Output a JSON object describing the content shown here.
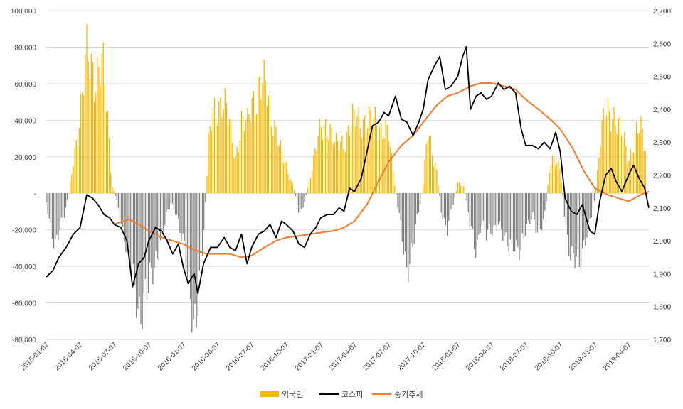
{
  "chart_data": {
    "type": "bar",
    "title": "",
    "left_axis": {
      "min": -80000,
      "max": 100000,
      "step": 20000,
      "ticks": [
        "100,000",
        "80,000",
        "60,000",
        "40,000",
        "20,000",
        "-",
        "-20,000",
        "-40,000",
        "-60,000",
        "-80,000"
      ]
    },
    "right_axis": {
      "min": 1700,
      "max": 2700,
      "step": 100,
      "ticks": [
        "2,700",
        "2,600",
        "2,500",
        "2,400",
        "2,300",
        "2,200",
        "2,100",
        "2,000",
        "1,900",
        "1,800",
        "1,700"
      ]
    },
    "x_ticks": [
      "2015-01-07",
      "2015-04-07",
      "2015-07-07",
      "2015-10-07",
      "2016-01-07",
      "2016-04-07",
      "2016-07-07",
      "2016-10-07",
      "2017-01-07",
      "2017-04-07",
      "2017-07-07",
      "2017-10-07",
      "2018-01-07",
      "2018-04-07",
      "2018-07-07",
      "2018-10-07",
      "2019-01-07",
      "2019-04-07"
    ],
    "x_range": [
      "2015-01-07",
      "2019-05-31"
    ],
    "grid": "horizontal",
    "legend_position": "bottom",
    "colors": {
      "positive": "#F5B800",
      "negative": "#808080",
      "kospi": "#000000",
      "trend": "#ED7D31"
    },
    "series": [
      {
        "name": "외국인",
        "type": "bar",
        "axis": "left",
        "points": [
          [
            "2015-01-07",
            -5000
          ],
          [
            "2015-02-01",
            -30000
          ],
          [
            "2015-02-20",
            -15000
          ],
          [
            "2015-03-10",
            2000
          ],
          [
            "2015-03-25",
            25000
          ],
          [
            "2015-04-07",
            45000
          ],
          [
            "2015-04-25",
            72000
          ],
          [
            "2015-05-15",
            68000
          ],
          [
            "2015-06-05",
            70000
          ],
          [
            "2015-06-20",
            40000
          ],
          [
            "2015-07-01",
            5000
          ],
          [
            "2015-07-15",
            -5000
          ],
          [
            "2015-08-05",
            -25000
          ],
          [
            "2015-08-25",
            -50000
          ],
          [
            "2015-09-15",
            -62000
          ],
          [
            "2015-10-07",
            -55000
          ],
          [
            "2015-10-25",
            -35000
          ],
          [
            "2015-11-15",
            -20000
          ],
          [
            "2015-12-05",
            -5000
          ],
          [
            "2015-12-20",
            -10000
          ],
          [
            "2016-01-07",
            -30000
          ],
          [
            "2016-01-25",
            -55000
          ],
          [
            "2016-02-10",
            -68000
          ],
          [
            "2016-02-25",
            -40000
          ],
          [
            "2016-03-05",
            -10000
          ],
          [
            "2016-03-15",
            30000
          ],
          [
            "2016-04-01",
            45000
          ],
          [
            "2016-04-20",
            55000
          ],
          [
            "2016-05-10",
            35000
          ],
          [
            "2016-05-25",
            20000
          ],
          [
            "2016-06-10",
            40000
          ],
          [
            "2016-06-25",
            35000
          ],
          [
            "2016-07-07",
            50000
          ],
          [
            "2016-07-25",
            60000
          ],
          [
            "2016-08-15",
            55000
          ],
          [
            "2016-09-05",
            40000
          ],
          [
            "2016-09-25",
            20000
          ],
          [
            "2016-10-07",
            15000
          ],
          [
            "2016-10-25",
            5000
          ],
          [
            "2016-11-10",
            -10000
          ],
          [
            "2016-11-25",
            -5000
          ],
          [
            "2016-12-10",
            10000
          ],
          [
            "2017-01-07",
            35000
          ],
          [
            "2017-01-25",
            40000
          ],
          [
            "2017-02-15",
            25000
          ],
          [
            "2017-03-10",
            30000
          ],
          [
            "2017-04-07",
            40000
          ],
          [
            "2017-04-25",
            42000
          ],
          [
            "2017-05-15",
            38000
          ],
          [
            "2017-06-05",
            40000
          ],
          [
            "2017-06-25",
            35000
          ],
          [
            "2017-07-07",
            30000
          ],
          [
            "2017-07-20",
            10000
          ],
          [
            "2017-08-05",
            -15000
          ],
          [
            "2017-08-25",
            -40000
          ],
          [
            "2017-09-10",
            -30000
          ],
          [
            "2017-09-25",
            -10000
          ],
          [
            "2017-10-07",
            5000
          ],
          [
            "2017-10-20",
            35000
          ],
          [
            "2017-11-10",
            15000
          ],
          [
            "2017-11-25",
            -10000
          ],
          [
            "2017-12-10",
            -20000
          ],
          [
            "2018-01-07",
            5000
          ],
          [
            "2018-01-25",
            3000
          ],
          [
            "2018-02-10",
            -20000
          ],
          [
            "2018-02-25",
            -30000
          ],
          [
            "2018-03-10",
            -15000
          ],
          [
            "2018-03-25",
            -25000
          ],
          [
            "2018-04-07",
            -20000
          ],
          [
            "2018-04-25",
            -15000
          ],
          [
            "2018-05-15",
            -30000
          ],
          [
            "2018-06-05",
            -25000
          ],
          [
            "2018-06-25",
            -35000
          ],
          [
            "2018-07-07",
            -20000
          ],
          [
            "2018-07-25",
            -10000
          ],
          [
            "2018-08-10",
            -25000
          ],
          [
            "2018-08-25",
            -15000
          ],
          [
            "2018-09-10",
            15000
          ],
          [
            "2018-09-25",
            20000
          ],
          [
            "2018-10-07",
            15000
          ],
          [
            "2018-10-20",
            -15000
          ],
          [
            "2018-11-05",
            -35000
          ],
          [
            "2018-11-25",
            -42000
          ],
          [
            "2018-12-10",
            -25000
          ],
          [
            "2018-12-25",
            -15000
          ],
          [
            "2019-01-07",
            -5000
          ],
          [
            "2019-01-20",
            25000
          ],
          [
            "2019-02-05",
            45000
          ],
          [
            "2019-02-20",
            48000
          ],
          [
            "2019-03-10",
            35000
          ],
          [
            "2019-03-25",
            30000
          ],
          [
            "2019-04-07",
            20000
          ],
          [
            "2019-04-25",
            30000
          ],
          [
            "2019-05-10",
            35000
          ],
          [
            "2019-05-25",
            25000
          ]
        ]
      },
      {
        "name": "코스피",
        "type": "line",
        "axis": "right",
        "points": [
          [
            "2015-01-07",
            1890
          ],
          [
            "2015-01-25",
            1910
          ],
          [
            "2015-02-10",
            1950
          ],
          [
            "2015-03-01",
            1980
          ],
          [
            "2015-03-20",
            2020
          ],
          [
            "2015-04-07",
            2040
          ],
          [
            "2015-04-25",
            2140
          ],
          [
            "2015-05-10",
            2130
          ],
          [
            "2015-05-25",
            2110
          ],
          [
            "2015-06-10",
            2080
          ],
          [
            "2015-06-25",
            2070
          ],
          [
            "2015-07-07",
            2050
          ],
          [
            "2015-07-25",
            2040
          ],
          [
            "2015-08-10",
            2000
          ],
          [
            "2015-08-25",
            1860
          ],
          [
            "2015-09-10",
            1930
          ],
          [
            "2015-09-25",
            1950
          ],
          [
            "2015-10-07",
            2000
          ],
          [
            "2015-10-25",
            2040
          ],
          [
            "2015-11-10",
            2030
          ],
          [
            "2015-11-25",
            2000
          ],
          [
            "2015-12-10",
            1960
          ],
          [
            "2015-12-25",
            1990
          ],
          [
            "2016-01-07",
            1920
          ],
          [
            "2016-01-20",
            1870
          ],
          [
            "2016-02-05",
            1900
          ],
          [
            "2016-02-15",
            1840
          ],
          [
            "2016-03-01",
            1930
          ],
          [
            "2016-03-20",
            1980
          ],
          [
            "2016-04-07",
            1980
          ],
          [
            "2016-04-25",
            2010
          ],
          [
            "2016-05-10",
            1980
          ],
          [
            "2016-05-25",
            1970
          ],
          [
            "2016-06-10",
            2020
          ],
          [
            "2016-06-25",
            1930
          ],
          [
            "2016-07-07",
            1980
          ],
          [
            "2016-07-25",
            2020
          ],
          [
            "2016-08-10",
            2030
          ],
          [
            "2016-08-25",
            2050
          ],
          [
            "2016-09-10",
            2010
          ],
          [
            "2016-09-25",
            2060
          ],
          [
            "2016-10-07",
            2050
          ],
          [
            "2016-10-25",
            2030
          ],
          [
            "2016-11-10",
            1990
          ],
          [
            "2016-11-25",
            1980
          ],
          [
            "2016-12-10",
            2020
          ],
          [
            "2016-12-25",
            2040
          ],
          [
            "2017-01-07",
            2070
          ],
          [
            "2017-01-25",
            2080
          ],
          [
            "2017-02-10",
            2080
          ],
          [
            "2017-02-25",
            2100
          ],
          [
            "2017-03-10",
            2090
          ],
          [
            "2017-03-25",
            2160
          ],
          [
            "2017-04-07",
            2150
          ],
          [
            "2017-04-25",
            2190
          ],
          [
            "2017-05-10",
            2270
          ],
          [
            "2017-05-25",
            2350
          ],
          [
            "2017-06-10",
            2360
          ],
          [
            "2017-06-25",
            2390
          ],
          [
            "2017-07-07",
            2380
          ],
          [
            "2017-07-25",
            2440
          ],
          [
            "2017-08-10",
            2370
          ],
          [
            "2017-08-25",
            2360
          ],
          [
            "2017-09-10",
            2320
          ],
          [
            "2017-09-25",
            2360
          ],
          [
            "2017-10-07",
            2400
          ],
          [
            "2017-10-20",
            2490
          ],
          [
            "2017-11-05",
            2530
          ],
          [
            "2017-11-20",
            2560
          ],
          [
            "2017-12-05",
            2460
          ],
          [
            "2017-12-20",
            2470
          ],
          [
            "2018-01-07",
            2500
          ],
          [
            "2018-01-20",
            2560
          ],
          [
            "2018-01-30",
            2590
          ],
          [
            "2018-02-10",
            2400
          ],
          [
            "2018-02-25",
            2440
          ],
          [
            "2018-03-10",
            2450
          ],
          [
            "2018-03-25",
            2430
          ],
          [
            "2018-04-07",
            2440
          ],
          [
            "2018-04-25",
            2480
          ],
          [
            "2018-05-10",
            2460
          ],
          [
            "2018-05-25",
            2470
          ],
          [
            "2018-06-10",
            2450
          ],
          [
            "2018-06-25",
            2340
          ],
          [
            "2018-07-07",
            2290
          ],
          [
            "2018-07-25",
            2290
          ],
          [
            "2018-08-10",
            2280
          ],
          [
            "2018-08-25",
            2300
          ],
          [
            "2018-09-10",
            2280
          ],
          [
            "2018-09-25",
            2330
          ],
          [
            "2018-10-07",
            2270
          ],
          [
            "2018-10-20",
            2130
          ],
          [
            "2018-11-05",
            2090
          ],
          [
            "2018-11-20",
            2080
          ],
          [
            "2018-12-05",
            2110
          ],
          [
            "2018-12-25",
            2030
          ],
          [
            "2019-01-07",
            2020
          ],
          [
            "2019-01-20",
            2120
          ],
          [
            "2019-02-05",
            2200
          ],
          [
            "2019-02-20",
            2220
          ],
          [
            "2019-03-05",
            2180
          ],
          [
            "2019-03-20",
            2150
          ],
          [
            "2019-04-07",
            2200
          ],
          [
            "2019-04-20",
            2230
          ],
          [
            "2019-05-05",
            2190
          ],
          [
            "2019-05-20",
            2160
          ],
          [
            "2019-05-31",
            2100
          ]
        ]
      },
      {
        "name": "중기추세",
        "type": "line",
        "axis": "right",
        "points": [
          [
            "2015-07-07",
            2050
          ],
          [
            "2015-08-01",
            2060
          ],
          [
            "2015-08-15",
            2065
          ],
          [
            "2015-09-10",
            2050
          ],
          [
            "2015-10-07",
            2030
          ],
          [
            "2015-11-10",
            2010
          ],
          [
            "2015-12-10",
            2000
          ],
          [
            "2016-01-07",
            1990
          ],
          [
            "2016-02-10",
            1970
          ],
          [
            "2016-03-10",
            1960
          ],
          [
            "2016-04-10",
            1960
          ],
          [
            "2016-05-10",
            1960
          ],
          [
            "2016-06-10",
            1950
          ],
          [
            "2016-07-07",
            1955
          ],
          [
            "2016-08-10",
            1980
          ],
          [
            "2016-09-10",
            2000
          ],
          [
            "2016-10-07",
            2010
          ],
          [
            "2016-11-10",
            2015
          ],
          [
            "2016-12-10",
            2020
          ],
          [
            "2017-01-07",
            2025
          ],
          [
            "2017-02-10",
            2030
          ],
          [
            "2017-03-10",
            2040
          ],
          [
            "2017-04-07",
            2060
          ],
          [
            "2017-05-10",
            2110
          ],
          [
            "2017-06-10",
            2180
          ],
          [
            "2017-07-07",
            2240
          ],
          [
            "2017-08-10",
            2290
          ],
          [
            "2017-09-10",
            2320
          ],
          [
            "2017-10-07",
            2360
          ],
          [
            "2017-11-10",
            2410
          ],
          [
            "2017-12-10",
            2440
          ],
          [
            "2018-01-07",
            2450
          ],
          [
            "2018-02-10",
            2470
          ],
          [
            "2018-03-10",
            2480
          ],
          [
            "2018-04-07",
            2480
          ],
          [
            "2018-05-10",
            2470
          ],
          [
            "2018-06-10",
            2460
          ],
          [
            "2018-07-07",
            2430
          ],
          [
            "2018-08-10",
            2400
          ],
          [
            "2018-09-10",
            2370
          ],
          [
            "2018-10-07",
            2340
          ],
          [
            "2018-11-10",
            2280
          ],
          [
            "2018-12-10",
            2210
          ],
          [
            "2019-01-07",
            2160
          ],
          [
            "2019-02-10",
            2140
          ],
          [
            "2019-03-10",
            2130
          ],
          [
            "2019-04-07",
            2120
          ],
          [
            "2019-05-10",
            2140
          ],
          [
            "2019-05-31",
            2150
          ]
        ]
      }
    ]
  }
}
